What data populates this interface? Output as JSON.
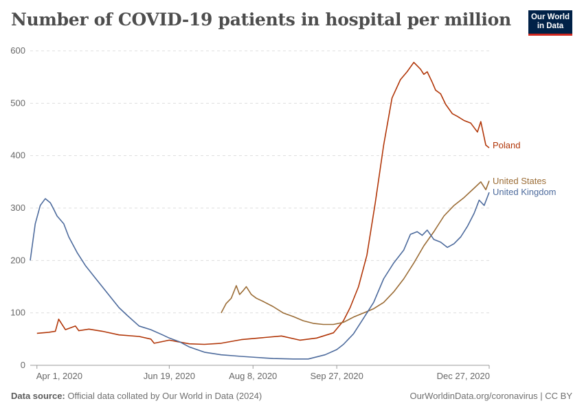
{
  "header": {
    "title": "Number of COVID-19 patients in hospital per million",
    "logo_line1": "Our World",
    "logo_line2": "in Data"
  },
  "footer": {
    "source_label": "Data source:",
    "source_text": "Official data collated by Our World in Data (2024)",
    "url_text": "OurWorldinData.org/coronavirus | CC BY"
  },
  "colors": {
    "poland": "#b13507",
    "united_states": "#9a6b34",
    "united_kingdom": "#4c6a9c",
    "logo_bg": "#002147",
    "logo_accent": "#ce261e"
  },
  "chart_data": {
    "type": "line",
    "title": "Number of COVID-19 patients in hospital per million",
    "x_range": [
      "2020-03-28",
      "2020-12-27"
    ],
    "ylim": [
      0,
      600
    ],
    "y_ticks": [
      0,
      100,
      200,
      300,
      400,
      500,
      600
    ],
    "x_ticks": [
      "2020-04-01",
      "2020-06-19",
      "2020-08-08",
      "2020-09-27",
      "2020-12-27"
    ],
    "x_tick_labels": [
      "Apr 1, 2020",
      "Jun 19, 2020",
      "Aug 8, 2020",
      "Sep 27, 2020",
      "Dec 27, 2020"
    ],
    "grid": "horizontal-dashed",
    "legend": "inline-right",
    "series": [
      {
        "name": "Poland",
        "key": "poland",
        "x": [
          "2020-04-01",
          "2020-04-08",
          "2020-04-12",
          "2020-04-14",
          "2020-04-18",
          "2020-04-24",
          "2020-04-26",
          "2020-05-02",
          "2020-05-10",
          "2020-05-20",
          "2020-06-01",
          "2020-06-08",
          "2020-06-10",
          "2020-06-19",
          "2020-07-01",
          "2020-07-10",
          "2020-07-20",
          "2020-08-01",
          "2020-08-15",
          "2020-08-25",
          "2020-09-05",
          "2020-09-15",
          "2020-09-25",
          "2020-10-01",
          "2020-10-05",
          "2020-10-10",
          "2020-10-15",
          "2020-10-20",
          "2020-10-25",
          "2020-10-30",
          "2020-11-04",
          "2020-11-08",
          "2020-11-12",
          "2020-11-16",
          "2020-11-18",
          "2020-11-20",
          "2020-11-23",
          "2020-11-25",
          "2020-11-28",
          "2020-12-01",
          "2020-12-05",
          "2020-12-08",
          "2020-12-12",
          "2020-12-16",
          "2020-12-20",
          "2020-12-22",
          "2020-12-25",
          "2020-12-27"
        ],
        "values": [
          61,
          63,
          65,
          88,
          68,
          75,
          66,
          69,
          65,
          58,
          55,
          50,
          42,
          48,
          41,
          40,
          42,
          49,
          53,
          56,
          48,
          52,
          62,
          85,
          110,
          150,
          210,
          310,
          420,
          510,
          545,
          560,
          578,
          565,
          555,
          560,
          540,
          525,
          518,
          498,
          480,
          475,
          467,
          462,
          445,
          465,
          420,
          415
        ]
      },
      {
        "name": "United States",
        "key": "united_states",
        "x": [
          "2020-07-20",
          "2020-07-23",
          "2020-07-26",
          "2020-07-29",
          "2020-07-31",
          "2020-08-02",
          "2020-08-04",
          "2020-08-07",
          "2020-08-10",
          "2020-08-14",
          "2020-08-20",
          "2020-08-26",
          "2020-09-01",
          "2020-09-07",
          "2020-09-13",
          "2020-09-19",
          "2020-09-25",
          "2020-10-01",
          "2020-10-07",
          "2020-10-13",
          "2020-10-19",
          "2020-10-25",
          "2020-10-31",
          "2020-11-06",
          "2020-11-12",
          "2020-11-18",
          "2020-11-24",
          "2020-11-30",
          "2020-12-06",
          "2020-12-12",
          "2020-12-18",
          "2020-12-22",
          "2020-12-25",
          "2020-12-27"
        ],
        "values": [
          100,
          118,
          128,
          152,
          135,
          142,
          150,
          135,
          128,
          122,
          112,
          100,
          93,
          85,
          80,
          78,
          78,
          82,
          92,
          100,
          108,
          120,
          140,
          165,
          195,
          228,
          255,
          285,
          305,
          320,
          338,
          350,
          335,
          352
        ]
      },
      {
        "name": "United Kingdom",
        "key": "united_kingdom",
        "x": [
          "2020-03-28",
          "2020-03-31",
          "2020-04-03",
          "2020-04-06",
          "2020-04-09",
          "2020-04-11",
          "2020-04-13",
          "2020-04-17",
          "2020-04-20",
          "2020-04-25",
          "2020-04-30",
          "2020-05-05",
          "2020-05-10",
          "2020-05-15",
          "2020-05-20",
          "2020-05-25",
          "2020-06-01",
          "2020-06-08",
          "2020-06-15",
          "2020-06-19",
          "2020-06-25",
          "2020-07-01",
          "2020-07-10",
          "2020-07-20",
          "2020-08-01",
          "2020-08-10",
          "2020-08-20",
          "2020-09-01",
          "2020-09-10",
          "2020-09-20",
          "2020-09-27",
          "2020-10-01",
          "2020-10-07",
          "2020-10-13",
          "2020-10-19",
          "2020-10-25",
          "2020-10-31",
          "2020-11-06",
          "2020-11-10",
          "2020-11-14",
          "2020-11-17",
          "2020-11-20",
          "2020-11-24",
          "2020-11-28",
          "2020-12-02",
          "2020-12-06",
          "2020-12-10",
          "2020-12-14",
          "2020-12-18",
          "2020-12-21",
          "2020-12-24",
          "2020-12-27"
        ],
        "values": [
          200,
          270,
          305,
          318,
          310,
          298,
          285,
          270,
          245,
          215,
          190,
          170,
          150,
          130,
          110,
          95,
          75,
          68,
          58,
          52,
          45,
          35,
          25,
          20,
          17,
          15,
          13,
          12,
          12,
          20,
          30,
          40,
          60,
          90,
          120,
          165,
          195,
          220,
          250,
          255,
          248,
          258,
          240,
          235,
          225,
          232,
          245,
          265,
          290,
          315,
          305,
          330
        ]
      }
    ]
  }
}
